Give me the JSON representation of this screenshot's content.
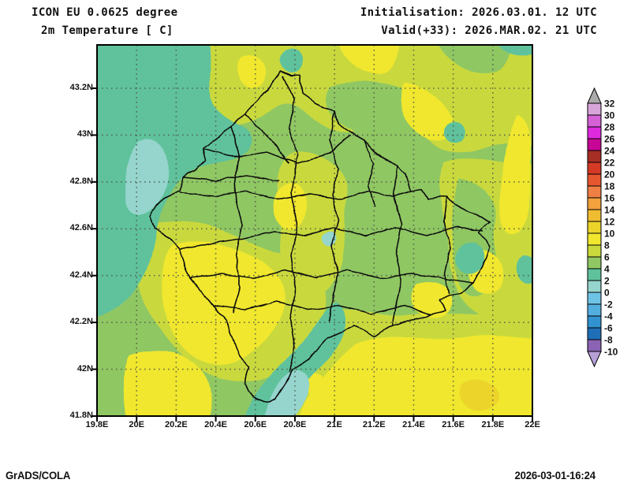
{
  "header": {
    "model_line": "ICON EU 0.0625 degree",
    "param_line": "2m Temperature [ C]",
    "init_line": "Initialisation: 2026.03.01. 12 UTC",
    "valid_line": "Valid(+33): 2026.MAR.02. 21 UTC"
  },
  "map": {
    "x_ticks": [
      "19.8E",
      "20E",
      "20.2E",
      "20.4E",
      "20.6E",
      "20.8E",
      "21E",
      "21.2E",
      "21.4E",
      "21.6E",
      "21.8E",
      "22E"
    ],
    "y_ticks": [
      "43.2N",
      "43N",
      "42.8N",
      "42.6N",
      "42.4N",
      "42.2N",
      "42N",
      "41.8N"
    ],
    "x_divisions": 11,
    "y_gridlines": 7
  },
  "colorbar": {
    "labels": [
      "32",
      "30",
      "28",
      "26",
      "24",
      "22",
      "20",
      "18",
      "16",
      "14",
      "12",
      "10",
      "8",
      "6",
      "4",
      "2",
      "0",
      "-2",
      "-4",
      "-6",
      "-8",
      "-10"
    ],
    "band_colors": [
      "#ababab",
      "#d8a5da",
      "#d561d6",
      "#de2ade",
      "#c70695",
      "#a62e24",
      "#d43a25",
      "#e6572f",
      "#ee7f45",
      "#f2a13d",
      "#f0bd32",
      "#ecd42a",
      "#f0e72e",
      "#c9d93c",
      "#8fc763",
      "#5fc29c",
      "#95d5cd",
      "#6fc4e6",
      "#52aede",
      "#3292cf",
      "#1f6fb8",
      "#8a63b4",
      "#b7a0d8"
    ]
  },
  "footer": {
    "left": "GrADS/COLA",
    "right": "2026-03-01-16:24"
  }
}
